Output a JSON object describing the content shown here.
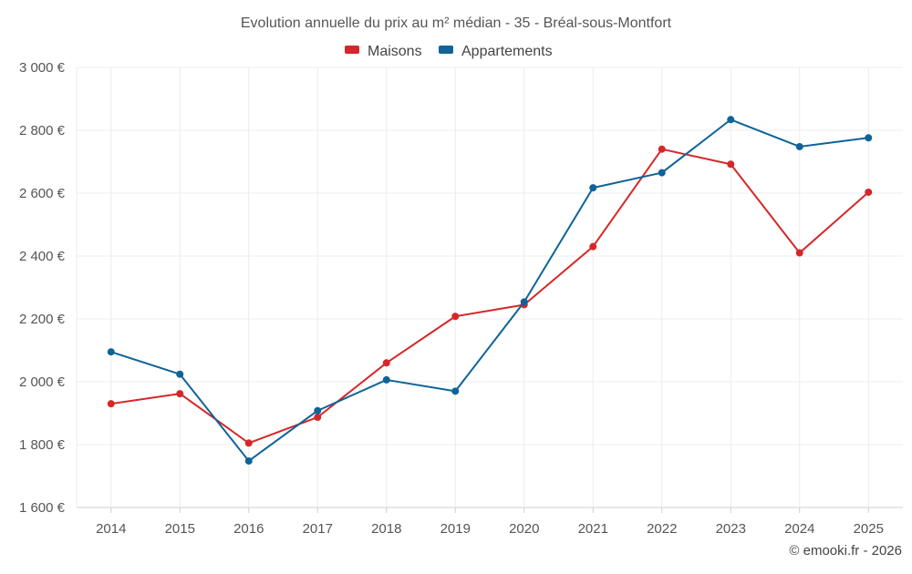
{
  "chart_data": {
    "type": "line",
    "title": "Evolution annuelle du prix au m² médian - 35 - Bréal-sous-Montfort",
    "categories": [
      "2014",
      "2015",
      "2016",
      "2017",
      "2018",
      "2019",
      "2020",
      "2021",
      "2022",
      "2023",
      "2024",
      "2025"
    ],
    "series": [
      {
        "name": "Maisons",
        "color": "#d62728",
        "values": [
          1930,
          1962,
          1805,
          1887,
          2060,
          2208,
          2245,
          2430,
          2740,
          2692,
          2410,
          2603
        ]
      },
      {
        "name": "Appartements",
        "color": "#0e6399",
        "values": [
          2095,
          2024,
          1748,
          1908,
          2006,
          1970,
          2254,
          2617,
          2665,
          2834,
          2748,
          2776
        ]
      }
    ],
    "ylim": [
      1600,
      3000
    ],
    "yticks": [
      1600,
      1800,
      2000,
      2200,
      2400,
      2600,
      2800,
      3000
    ],
    "ytick_labels": [
      "1 600 €",
      "1 800 €",
      "2 000 €",
      "2 200 €",
      "2 400 €",
      "2 600 €",
      "2 800 €",
      "3 000 €"
    ],
    "grid": true,
    "legend_position": "top-center",
    "xlabel": "",
    "ylabel": ""
  },
  "credit": "© emooki.fr - 2026"
}
